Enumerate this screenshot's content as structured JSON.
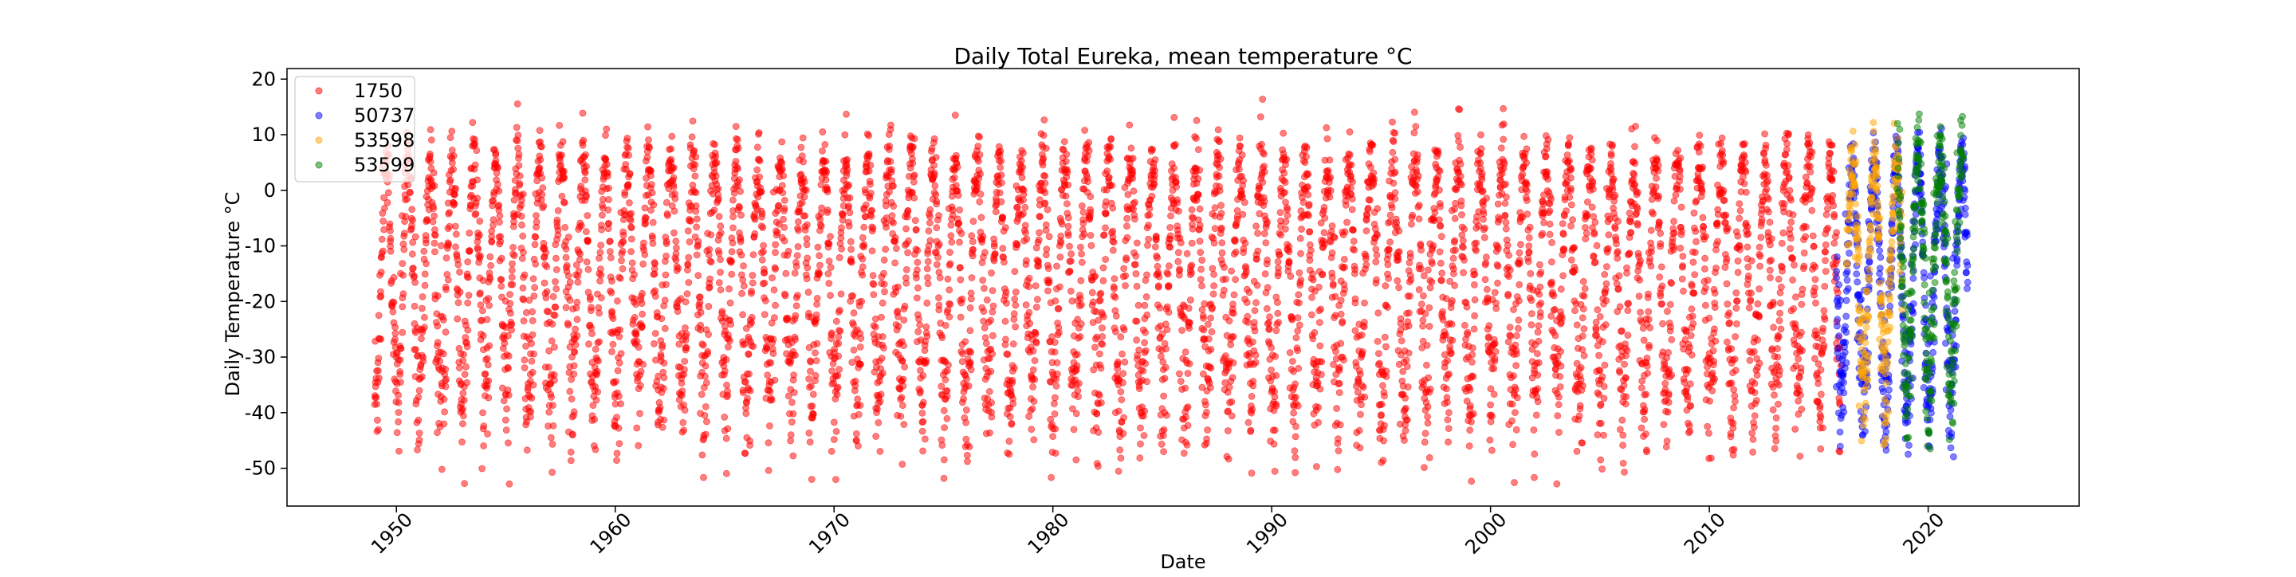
{
  "chart_data": {
    "type": "scatter",
    "title": "Daily Total Eureka, mean temperature °C",
    "xlabel": "Date",
    "ylabel": "Daily Temperature °C",
    "xlim": [
      1945.0,
      2026.9
    ],
    "ylim": [
      -56.8,
      21.9
    ],
    "x_ticks": [
      1950,
      1960,
      1970,
      1980,
      1990,
      2000,
      2010,
      2020
    ],
    "y_ticks": [
      -50,
      -40,
      -30,
      -20,
      -10,
      0,
      10,
      20
    ],
    "grid": false,
    "legend_position": "top-left",
    "series": [
      {
        "name": "1750",
        "color": "#ff0000",
        "x_range": [
          1949.0,
          2016.0
        ],
        "annual_cycle": {
          "summer_mean": 5,
          "winter_mean": -37,
          "summer_max": 16.4,
          "winter_min": -53.0
        }
      },
      {
        "name": "50737",
        "color": "#0000ff",
        "x_range": [
          2015.8,
          2021.8
        ],
        "annual_cycle": {
          "summer_mean": 5,
          "winter_mean": -37,
          "summer_max": 14,
          "winter_min": -48
        }
      },
      {
        "name": "53598",
        "color": "#ffa500",
        "x_range": [
          2016.3,
          2018.8
        ],
        "annual_cycle": {
          "summer_mean": 6,
          "winter_mean": -35,
          "summer_max": 15.6,
          "winter_min": -49.5
        }
      },
      {
        "name": "53599",
        "color": "#008000",
        "x_range": [
          2018.6,
          2021.6
        ],
        "annual_cycle": {
          "summer_mean": 7,
          "winter_mean": -34,
          "summer_max": 18.5,
          "winter_min": -47
        }
      }
    ]
  }
}
